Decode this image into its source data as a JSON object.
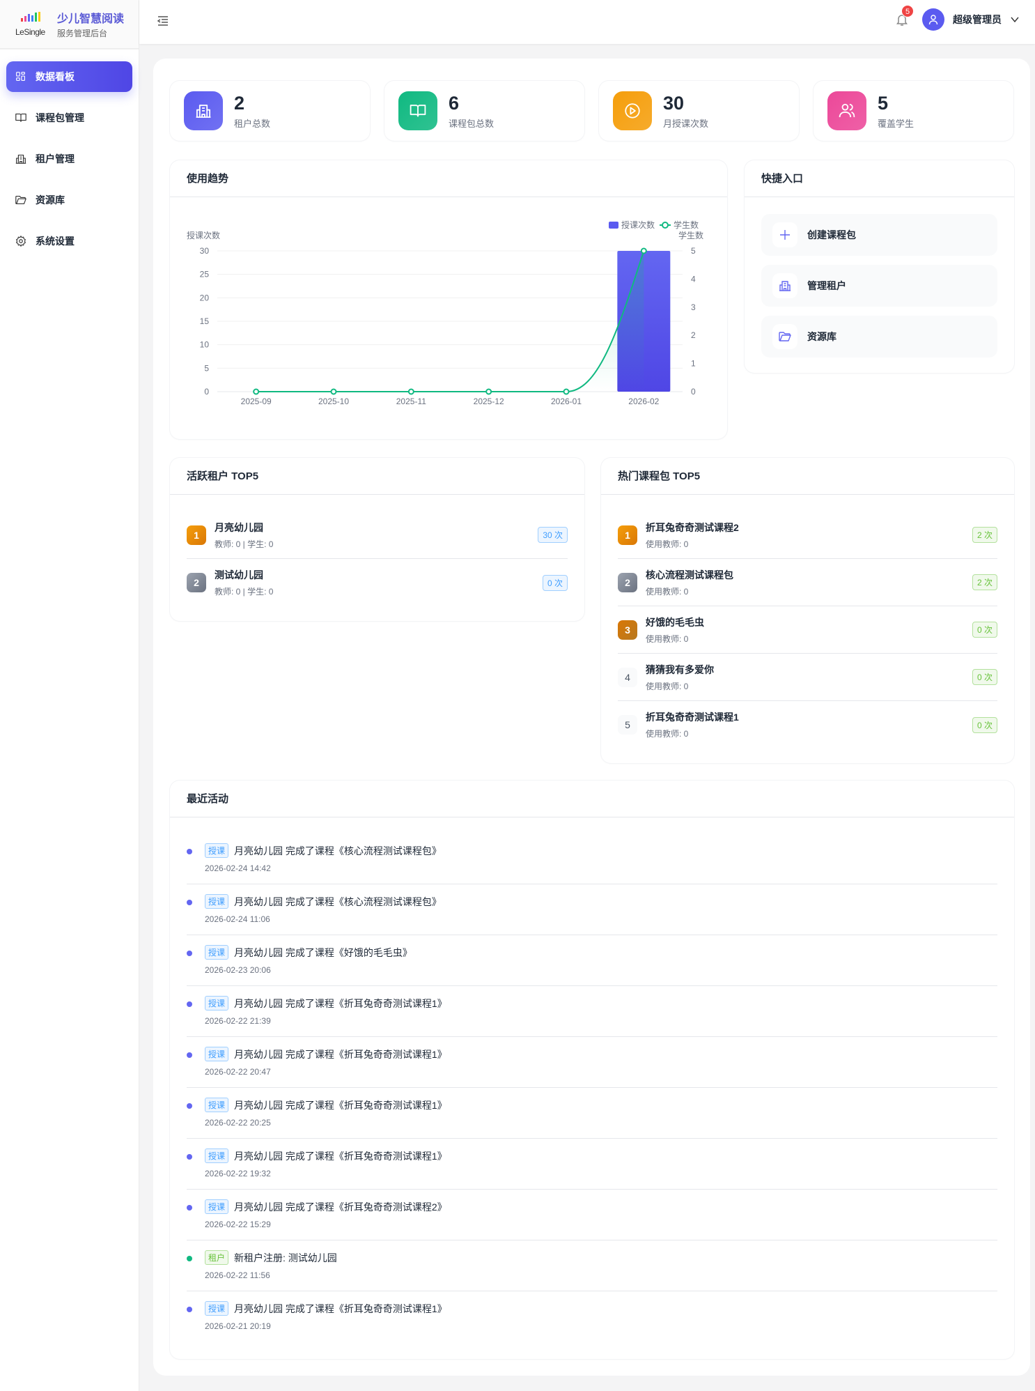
{
  "brand": {
    "title": "少儿智慧阅读",
    "subtitle": "服务管理后台",
    "logo_text": "LeSingle"
  },
  "sidebar": {
    "items": [
      {
        "label": "数据看板",
        "icon": "dashboard-icon",
        "active": true
      },
      {
        "label": "课程包管理",
        "icon": "book-icon"
      },
      {
        "label": "租户管理",
        "icon": "building-icon"
      },
      {
        "label": "资源库",
        "icon": "folder-icon"
      },
      {
        "label": "系统设置",
        "icon": "gear-icon"
      }
    ]
  },
  "header": {
    "notifications": "5",
    "user": "超级管理员"
  },
  "stats": [
    {
      "value": "2",
      "label": "租户总数",
      "color": "#5b5bf0",
      "icon": "building-icon"
    },
    {
      "value": "6",
      "label": "课程包总数",
      "color": "#10b981",
      "icon": "book-icon"
    },
    {
      "value": "30",
      "label": "月授课次数",
      "color": "#f59e0b",
      "icon": "play-icon"
    },
    {
      "value": "5",
      "label": "覆盖学生",
      "color": "#ec4899",
      "icon": "users-icon"
    }
  ],
  "trend": {
    "title": "使用趋势"
  },
  "chart_data": {
    "type": "bar+line",
    "categories": [
      "2025-09",
      "2025-10",
      "2025-11",
      "2025-12",
      "2026-01",
      "2026-02"
    ],
    "series": [
      {
        "name": "授课次数",
        "type": "bar",
        "axis": "left",
        "values": [
          0,
          0,
          0,
          0,
          0,
          30
        ],
        "color": "#5b5bf0"
      },
      {
        "name": "学生数",
        "type": "line",
        "axis": "right",
        "smooth": true,
        "values": [
          0,
          0,
          0,
          0,
          0,
          5
        ],
        "color": "#10b981"
      }
    ],
    "ylabel_left": "授课次数",
    "ylabel_right": "学生数",
    "ylim_left": [
      0,
      30
    ],
    "ylim_right": [
      0,
      5
    ],
    "yticks_left": [
      0,
      5,
      10,
      15,
      20,
      25,
      30
    ],
    "yticks_right": [
      0,
      1,
      2,
      3,
      4,
      5
    ],
    "grid": true,
    "legend": "top-right"
  },
  "quick": {
    "title": "快捷入口",
    "items": [
      {
        "label": "创建课程包",
        "icon": "plus-icon"
      },
      {
        "label": "管理租户",
        "icon": "building-icon"
      },
      {
        "label": "资源库",
        "icon": "folder-icon"
      }
    ]
  },
  "tenants": {
    "title": "活跃租户 TOP5",
    "items": [
      {
        "rank": "1",
        "name": "月亮幼儿园",
        "sub": "教师: 0 | 学生: 0",
        "count": "30 次"
      },
      {
        "rank": "2",
        "name": "测试幼儿园",
        "sub": "教师: 0 | 学生: 0",
        "count": "0 次"
      }
    ]
  },
  "courses": {
    "title": "热门课程包 TOP5",
    "items": [
      {
        "rank": "1",
        "name": "折耳兔奇奇测试课程2",
        "sub": "使用教师: 0",
        "count": "2 次"
      },
      {
        "rank": "2",
        "name": "核心流程测试课程包",
        "sub": "使用教师: 0",
        "count": "2 次"
      },
      {
        "rank": "3",
        "name": "好饿的毛毛虫",
        "sub": "使用教师: 0",
        "count": "0 次"
      },
      {
        "rank": "4",
        "name": "猜猜我有多爱你",
        "sub": "使用教师: 0",
        "count": "0 次"
      },
      {
        "rank": "5",
        "name": "折耳兔奇奇测试课程1",
        "sub": "使用教师: 0",
        "count": "0 次"
      }
    ]
  },
  "activity": {
    "title": "最近活动",
    "items": [
      {
        "tag": "授课",
        "type": "class",
        "text": "月亮幼儿园 完成了课程《核心流程测试课程包》",
        "time": "2026-02-24 14:42"
      },
      {
        "tag": "授课",
        "type": "class",
        "text": "月亮幼儿园 完成了课程《核心流程测试课程包》",
        "time": "2026-02-24 11:06"
      },
      {
        "tag": "授课",
        "type": "class",
        "text": "月亮幼儿园 完成了课程《好饿的毛毛虫》",
        "time": "2026-02-23 20:06"
      },
      {
        "tag": "授课",
        "type": "class",
        "text": "月亮幼儿园 完成了课程《折耳兔奇奇测试课程1》",
        "time": "2026-02-22 21:39"
      },
      {
        "tag": "授课",
        "type": "class",
        "text": "月亮幼儿园 完成了课程《折耳兔奇奇测试课程1》",
        "time": "2026-02-22 20:47"
      },
      {
        "tag": "授课",
        "type": "class",
        "text": "月亮幼儿园 完成了课程《折耳兔奇奇测试课程1》",
        "time": "2026-02-22 20:25"
      },
      {
        "tag": "授课",
        "type": "class",
        "text": "月亮幼儿园 完成了课程《折耳兔奇奇测试课程1》",
        "time": "2026-02-22 19:32"
      },
      {
        "tag": "授课",
        "type": "class",
        "text": "月亮幼儿园 完成了课程《折耳兔奇奇测试课程2》",
        "time": "2026-02-22 15:29"
      },
      {
        "tag": "租户",
        "type": "tenant",
        "text": "新租户注册: 测试幼儿园",
        "time": "2026-02-22 11:56"
      },
      {
        "tag": "授课",
        "type": "class",
        "text": "月亮幼儿园 完成了课程《折耳兔奇奇测试课程1》",
        "time": "2026-02-21 20:19"
      }
    ]
  }
}
